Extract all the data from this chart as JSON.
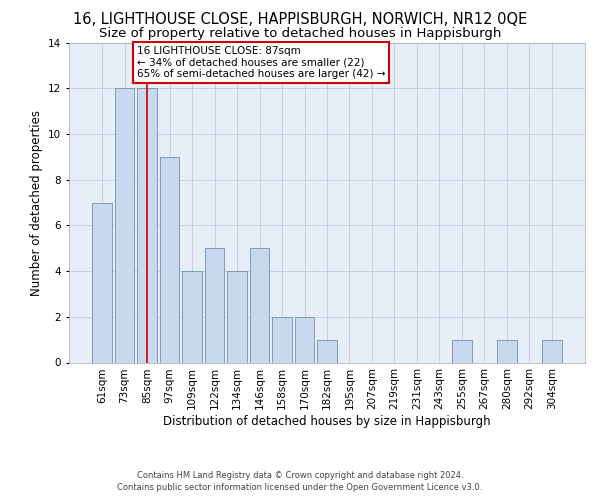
{
  "title_line1": "16, LIGHTHOUSE CLOSE, HAPPISBURGH, NORWICH, NR12 0QE",
  "title_line2": "Size of property relative to detached houses in Happisburgh",
  "xlabel": "Distribution of detached houses by size in Happisburgh",
  "ylabel": "Number of detached properties",
  "categories": [
    "61sqm",
    "73sqm",
    "85sqm",
    "97sqm",
    "109sqm",
    "122sqm",
    "134sqm",
    "146sqm",
    "158sqm",
    "170sqm",
    "182sqm",
    "195sqm",
    "207sqm",
    "219sqm",
    "231sqm",
    "243sqm",
    "255sqm",
    "267sqm",
    "280sqm",
    "292sqm",
    "304sqm"
  ],
  "values": [
    7,
    12,
    12,
    9,
    4,
    5,
    4,
    5,
    2,
    2,
    1,
    0,
    0,
    0,
    0,
    0,
    1,
    0,
    1,
    0,
    1
  ],
  "bar_color": "#c8d8ee",
  "bar_edge_color": "#7090b0",
  "vline_x": 2,
  "vline_color": "#cc0000",
  "annotation_text": "16 LIGHTHOUSE CLOSE: 87sqm\n← 34% of detached houses are smaller (22)\n65% of semi-detached houses are larger (42) →",
  "annotation_box_color": "#ffffff",
  "annotation_box_edge": "#cc0000",
  "ylim": [
    0,
    14
  ],
  "yticks": [
    0,
    2,
    4,
    6,
    8,
    10,
    12,
    14
  ],
  "footer_line1": "Contains HM Land Registry data © Crown copyright and database right 2024.",
  "footer_line2": "Contains public sector information licensed under the Open Government Licence v3.0.",
  "grid_color": "#c8d0e0",
  "background_color": "#e8eef8",
  "title_fontsize": 10.5,
  "subtitle_fontsize": 9.5,
  "tick_fontsize": 7.5,
  "ylabel_fontsize": 8.5,
  "xlabel_fontsize": 8.5,
  "annotation_fontsize": 7.5,
  "footer_fontsize": 6.0
}
